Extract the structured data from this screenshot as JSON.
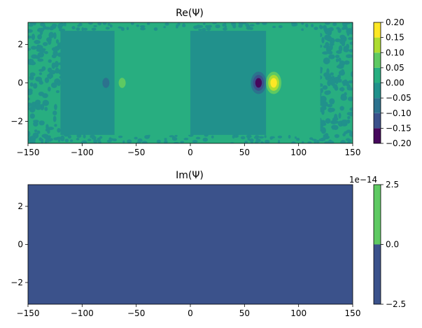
{
  "chart_data": [
    {
      "type": "heatmap",
      "title": "Re(Ψ)",
      "xlim": [
        -150,
        150
      ],
      "ylim": [
        -3.14,
        3.14
      ],
      "x_ticks": [
        -150,
        -100,
        -50,
        0,
        50,
        100,
        150
      ],
      "y_ticks": [
        -2,
        0,
        2
      ],
      "grid": false,
      "colorbar": {
        "ticks": [
          -0.2,
          -0.15,
          -0.1,
          -0.05,
          0.0,
          0.05,
          0.1,
          0.15,
          0.2
        ],
        "tick_labels": [
          "−0.20",
          "−0.15",
          "−0.10",
          "−0.05",
          "0.00",
          "0.05",
          "0.10",
          "0.15",
          "0.20"
        ],
        "levels": [
          -0.2,
          -0.15,
          -0.1,
          -0.05,
          0.0,
          0.05,
          0.1,
          0.15,
          0.2
        ],
        "colors": [
          "#46085c",
          "#3b518b",
          "#2c728e",
          "#21918c",
          "#28ae80",
          "#5ec962",
          "#addc30",
          "#fde725"
        ]
      },
      "features": [
        {
          "kind": "band",
          "x": [
            -120,
            -70
          ],
          "y": [
            -2.7,
            2.7
          ],
          "value": -0.02
        },
        {
          "kind": "band",
          "x": [
            -70,
            0
          ],
          "y": [
            -2.7,
            2.7
          ],
          "value": 0.02
        },
        {
          "kind": "band",
          "x": [
            0,
            70
          ],
          "y": [
            -2.7,
            2.7
          ],
          "value": -0.02
        },
        {
          "kind": "band",
          "x": [
            70,
            120
          ],
          "y": [
            -2.7,
            2.7
          ],
          "value": 0.02
        },
        {
          "kind": "blob",
          "x": -78,
          "y": 0,
          "value": -0.06
        },
        {
          "kind": "blob",
          "x": -63,
          "y": 0,
          "value": 0.06
        },
        {
          "kind": "blob",
          "x": 63,
          "y": 0,
          "value": -0.18
        },
        {
          "kind": "blob",
          "x": 77,
          "y": 0,
          "value": 0.18
        }
      ]
    },
    {
      "type": "heatmap",
      "title": "Im(Ψ)",
      "xlim": [
        -150,
        150
      ],
      "ylim": [
        -3.14,
        3.14
      ],
      "x_ticks": [
        -150,
        -100,
        -50,
        0,
        50,
        100,
        150
      ],
      "y_ticks": [
        -2,
        0,
        2
      ],
      "grid": false,
      "colorbar": {
        "ticks": [
          -2.5,
          0.0,
          2.5
        ],
        "tick_labels": [
          "−2.5",
          "0.0",
          "2.5"
        ],
        "offset_text": "1e−14",
        "levels": [
          -2.5,
          0.0,
          2.5
        ],
        "colors": [
          "#3b528b",
          "#5ec962"
        ]
      },
      "fill_value": -1.0
    }
  ]
}
